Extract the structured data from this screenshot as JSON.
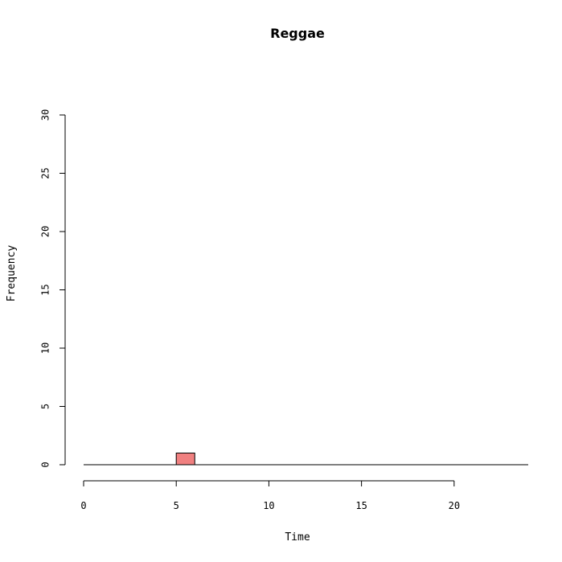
{
  "chart_data": {
    "type": "bar",
    "title": "Reggae",
    "xlabel": "Time",
    "ylabel": "Frequency",
    "xlim": [
      0,
      24
    ],
    "ylim": [
      0,
      30
    ],
    "x_ticks": [
      0,
      5,
      10,
      15,
      20
    ],
    "y_ticks": [
      0,
      5,
      10,
      15,
      20,
      25,
      30
    ],
    "bins": [
      {
        "start": 5,
        "end": 6,
        "value": 1
      }
    ],
    "bar_color": "#f08080",
    "grid": false,
    "legend": "none"
  }
}
